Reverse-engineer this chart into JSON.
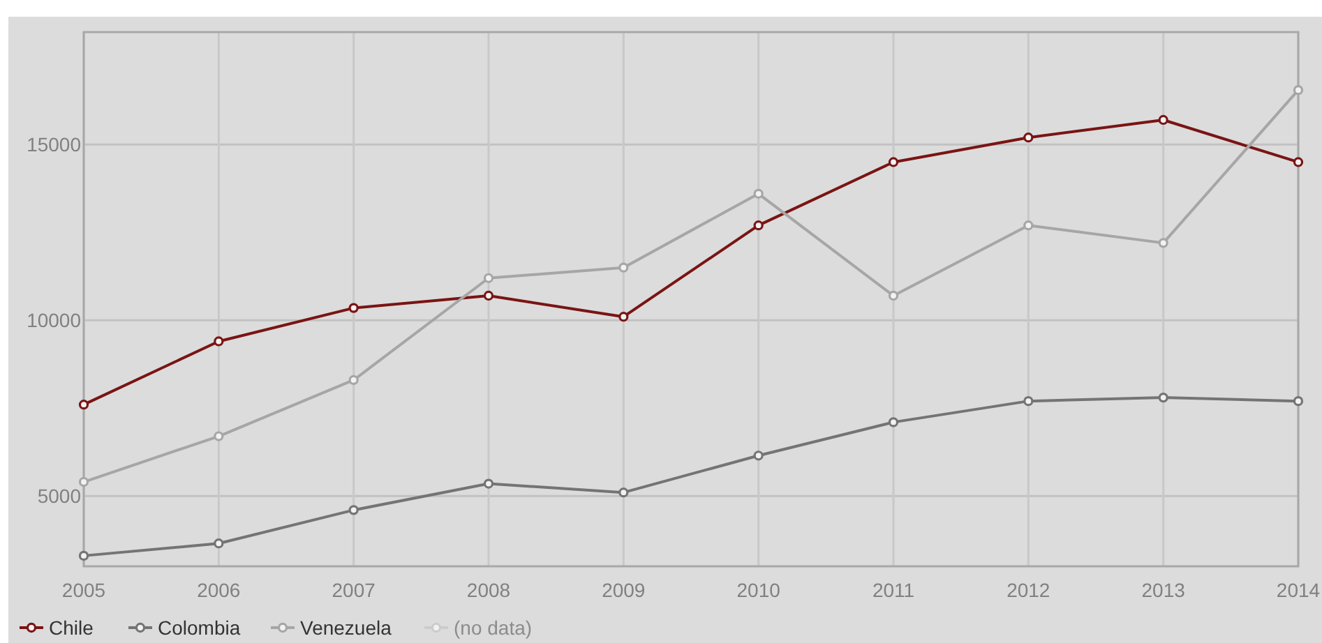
{
  "chart_data": {
    "type": "line",
    "categories": [
      "2005",
      "2006",
      "2007",
      "2008",
      "2009",
      "2010",
      "2011",
      "2012",
      "2013",
      "2014"
    ],
    "series": [
      {
        "name": "Chile",
        "color": "#7a1414",
        "values": [
          7600,
          9400,
          10350,
          10700,
          10100,
          12700,
          14500,
          15200,
          15700,
          14500
        ]
      },
      {
        "name": "Colombia",
        "color": "#747474",
        "values": [
          3300,
          3650,
          4600,
          5350,
          5100,
          6150,
          7100,
          7700,
          7800,
          7700
        ]
      },
      {
        "name": "Venezuela",
        "color": "#a6a6a6",
        "values": [
          5400,
          6700,
          8300,
          11200,
          11500,
          13600,
          10700,
          12700,
          12200,
          16550
        ]
      },
      {
        "name": "(no data)",
        "color": "#cccccc",
        "values": [
          null,
          null,
          null,
          null,
          null,
          null,
          null,
          null,
          null,
          null
        ]
      }
    ],
    "ylim": [
      3000,
      18200
    ],
    "yticks": [
      5000,
      10000,
      15000
    ],
    "grid": true,
    "legend": "bottom left",
    "marker": "circle",
    "line_style": "solid"
  }
}
